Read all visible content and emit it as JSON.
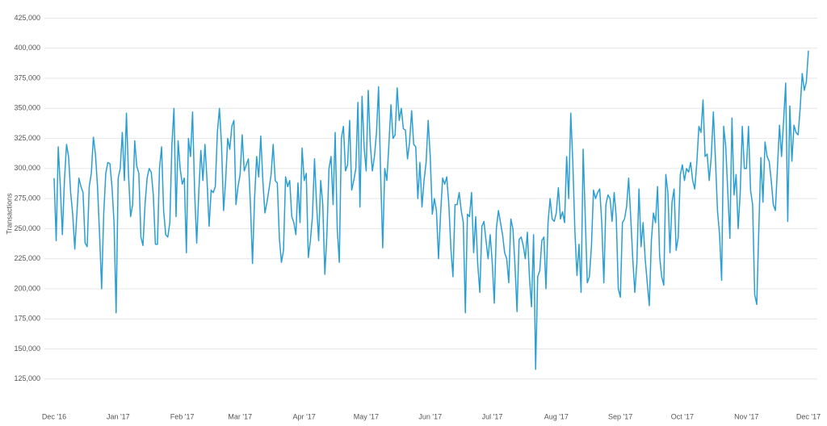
{
  "chart_data": {
    "type": "line",
    "y_label": "Transactions",
    "color": "#2b9fd3",
    "grid": true,
    "ylim": [
      100000,
      425000
    ],
    "yticks": [
      {
        "value": 125000,
        "label": "125,000"
      },
      {
        "value": 150000,
        "label": "150,000"
      },
      {
        "value": 175000,
        "label": "175,000"
      },
      {
        "value": 200000,
        "label": "200,000"
      },
      {
        "value": 225000,
        "label": "225,000"
      },
      {
        "value": 250000,
        "label": "250,000"
      },
      {
        "value": 275000,
        "label": "275,000"
      },
      {
        "value": 300000,
        "label": "300,000"
      },
      {
        "value": 325000,
        "label": "325,000"
      },
      {
        "value": 350000,
        "label": "350,000"
      },
      {
        "value": 375000,
        "label": "375,000"
      },
      {
        "value": 400000,
        "label": "400,000"
      },
      {
        "value": 425000,
        "label": "425,000"
      }
    ],
    "categories": [
      "Dec '16",
      null,
      null,
      null,
      null,
      null,
      null,
      null,
      null,
      null,
      null,
      null,
      null,
      null,
      null,
      null,
      null,
      null,
      null,
      null,
      null,
      null,
      null,
      null,
      null,
      null,
      null,
      null,
      null,
      null,
      null,
      "Jan '17",
      null,
      null,
      null,
      null,
      null,
      null,
      null,
      null,
      null,
      null,
      null,
      null,
      null,
      null,
      null,
      null,
      null,
      null,
      null,
      null,
      null,
      null,
      null,
      null,
      null,
      null,
      null,
      null,
      null,
      null,
      "Feb '17",
      null,
      null,
      null,
      null,
      null,
      null,
      null,
      null,
      null,
      null,
      null,
      null,
      null,
      null,
      null,
      null,
      null,
      null,
      null,
      null,
      null,
      null,
      null,
      null,
      null,
      null,
      null,
      "Mar '17",
      null,
      null,
      null,
      null,
      null,
      null,
      null,
      null,
      null,
      null,
      null,
      null,
      null,
      null,
      null,
      null,
      null,
      null,
      null,
      null,
      null,
      null,
      null,
      null,
      null,
      null,
      null,
      null,
      null,
      null,
      "Apr '17",
      null,
      null,
      null,
      null,
      null,
      null,
      null,
      null,
      null,
      null,
      null,
      null,
      null,
      null,
      null,
      null,
      null,
      null,
      null,
      null,
      null,
      null,
      null,
      null,
      null,
      null,
      null,
      null,
      null,
      "May '17",
      null,
      null,
      null,
      null,
      null,
      null,
      null,
      null,
      null,
      null,
      null,
      null,
      null,
      null,
      null,
      null,
      null,
      null,
      null,
      null,
      null,
      null,
      null,
      null,
      null,
      null,
      null,
      null,
      null,
      null,
      "Jun '17",
      null,
      null,
      null,
      null,
      null,
      null,
      null,
      null,
      null,
      null,
      null,
      null,
      null,
      null,
      null,
      null,
      null,
      null,
      null,
      null,
      null,
      null,
      null,
      null,
      null,
      null,
      null,
      null,
      null,
      "Jul '17",
      null,
      null,
      null,
      null,
      null,
      null,
      null,
      null,
      null,
      null,
      null,
      null,
      null,
      null,
      null,
      null,
      null,
      null,
      null,
      null,
      null,
      null,
      null,
      null,
      null,
      null,
      null,
      null,
      null,
      null,
      "Aug '17",
      null,
      null,
      null,
      null,
      null,
      null,
      null,
      null,
      null,
      null,
      null,
      null,
      null,
      null,
      null,
      null,
      null,
      null,
      null,
      null,
      null,
      null,
      null,
      null,
      null,
      null,
      null,
      null,
      null,
      null,
      "Sep '17",
      null,
      null,
      null,
      null,
      null,
      null,
      null,
      null,
      null,
      null,
      null,
      null,
      null,
      null,
      null,
      null,
      null,
      null,
      null,
      null,
      null,
      null,
      null,
      null,
      null,
      null,
      null,
      null,
      null,
      "Oct '17",
      null,
      null,
      null,
      null,
      null,
      null,
      null,
      null,
      null,
      null,
      null,
      null,
      null,
      null,
      null,
      null,
      null,
      null,
      null,
      null,
      null,
      null,
      null,
      null,
      null,
      null,
      null,
      null,
      null,
      null,
      "Nov '17",
      null,
      null,
      null,
      null,
      null,
      null,
      null,
      null,
      null,
      null,
      null,
      null,
      null,
      null,
      null,
      null,
      null,
      null,
      null,
      null,
      null,
      null,
      null,
      null,
      null,
      null,
      null,
      null,
      null,
      "Dec '17"
    ],
    "values": [
      292000,
      240000,
      318000,
      285000,
      245000,
      290000,
      320000,
      310000,
      280000,
      262000,
      233000,
      262000,
      292000,
      285000,
      280000,
      238000,
      235000,
      285000,
      296000,
      326000,
      312000,
      285000,
      245000,
      200000,
      262000,
      296000,
      305000,
      304000,
      285000,
      255000,
      180000,
      292000,
      300000,
      330000,
      290000,
      346000,
      295000,
      260000,
      270000,
      323000,
      302000,
      296000,
      243000,
      236000,
      270000,
      292000,
      300000,
      297000,
      278000,
      237000,
      237000,
      300000,
      318000,
      265000,
      245000,
      243000,
      255000,
      320000,
      350000,
      260000,
      323000,
      300000,
      287000,
      292000,
      230000,
      325000,
      310000,
      347000,
      280000,
      238000,
      280000,
      315000,
      290000,
      320000,
      290000,
      252000,
      282000,
      280000,
      285000,
      330000,
      350000,
      320000,
      265000,
      290000,
      325000,
      316000,
      335000,
      340000,
      270000,
      285000,
      295000,
      328000,
      298000,
      303000,
      308000,
      270000,
      221000,
      275000,
      310000,
      293000,
      327000,
      290000,
      263000,
      272000,
      283000,
      295000,
      320000,
      290000,
      288000,
      242000,
      222000,
      232000,
      293000,
      285000,
      290000,
      260000,
      255000,
      245000,
      288000,
      255000,
      317000,
      290000,
      296000,
      226000,
      240000,
      260000,
      308000,
      270000,
      240000,
      290000,
      270000,
      212000,
      245000,
      300000,
      310000,
      270000,
      330000,
      250000,
      222000,
      325000,
      335000,
      298000,
      303000,
      340000,
      282000,
      290000,
      300000,
      355000,
      268000,
      360000,
      318000,
      298000,
      365000,
      320000,
      298000,
      310000,
      330000,
      368000,
      295000,
      234000,
      300000,
      290000,
      320000,
      353000,
      325000,
      328000,
      367000,
      340000,
      350000,
      333000,
      332000,
      308000,
      322000,
      348000,
      320000,
      318000,
      275000,
      305000,
      268000,
      290000,
      305000,
      340000,
      310000,
      262000,
      275000,
      265000,
      225000,
      262000,
      292000,
      287000,
      293000,
      270000,
      233000,
      210000,
      270000,
      270000,
      280000,
      265000,
      255000,
      180000,
      262000,
      260000,
      280000,
      230000,
      260000,
      220000,
      197000,
      252000,
      256000,
      240000,
      225000,
      245000,
      222000,
      188000,
      250000,
      265000,
      255000,
      245000,
      230000,
      225000,
      205000,
      258000,
      250000,
      220000,
      181000,
      241000,
      243000,
      236000,
      225000,
      247000,
      210000,
      185000,
      245000,
      133000,
      210000,
      215000,
      240000,
      243000,
      200000,
      255000,
      275000,
      258000,
      256000,
      263000,
      284000,
      258000,
      264000,
      255000,
      310000,
      275000,
      346000,
      305000,
      248000,
      211000,
      237000,
      197000,
      316000,
      260000,
      205000,
      210000,
      235000,
      282000,
      275000,
      280000,
      283000,
      255000,
      205000,
      270000,
      278000,
      275000,
      256000,
      280000,
      260000,
      200000,
      193000,
      255000,
      258000,
      268000,
      292000,
      260000,
      225000,
      197000,
      222000,
      283000,
      235000,
      255000,
      225000,
      205000,
      186000,
      240000,
      263000,
      255000,
      285000,
      227000,
      210000,
      203000,
      295000,
      280000,
      230000,
      272000,
      283000,
      232000,
      243000,
      295000,
      303000,
      290000,
      300000,
      297000,
      305000,
      290000,
      283000,
      305000,
      335000,
      330000,
      357000,
      310000,
      312000,
      290000,
      310000,
      347000,
      308000,
      265000,
      245000,
      207000,
      335000,
      318000,
      280000,
      242000,
      342000,
      278000,
      295000,
      250000,
      280000,
      335000,
      300000,
      300000,
      335000,
      282000,
      270000,
      195000,
      187000,
      250000,
      309000,
      272000,
      322000,
      310000,
      306000,
      290000,
      270000,
      265000,
      300000,
      336000,
      310000,
      340000,
      371000,
      256000,
      352000,
      306000,
      336000,
      330000,
      328000,
      350000,
      379000,
      365000,
      372000,
      398000
    ]
  }
}
